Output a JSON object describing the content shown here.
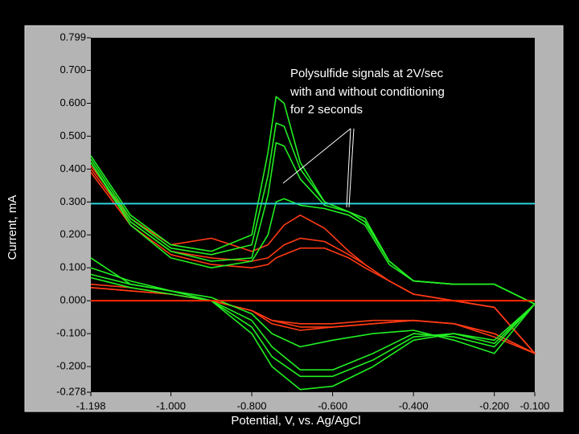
{
  "chart_data": {
    "type": "line",
    "xlabel": "Potential, V, vs. Ag/AgCl",
    "ylabel": "Current, mA",
    "annotation": [
      "Polysulfide signals at 2V/sec",
      "with and without conditioning",
      "for 2 seconds"
    ],
    "xlim": [
      -1.198,
      -0.1
    ],
    "ylim": [
      -0.278,
      0.799
    ],
    "xticks": [
      -1.198,
      {
        "value": -1,
        "label": "-1.000"
      },
      {
        "value": -0.8,
        "label": "-0.800"
      },
      {
        "value": -0.6,
        "label": "-0.600"
      },
      {
        "value": -0.4,
        "label": "-0.400"
      },
      {
        "value": -0.2,
        "label": "-0.200"
      },
      {
        "value": -0.1,
        "label": "-0.100"
      }
    ],
    "yticks": [
      0.799,
      {
        "value": 0.7,
        "label": "0.700"
      },
      {
        "value": 0.6,
        "label": "0.600"
      },
      {
        "value": 0.5,
        "label": "0.500"
      },
      {
        "value": 0.4,
        "label": "0.400"
      },
      {
        "value": 0.3,
        "label": "0.300"
      },
      {
        "value": 0.2,
        "label": "0.200"
      },
      {
        "value": 0.1,
        "label": "0.100"
      },
      {
        "value": 0,
        "label": "0.000"
      },
      {
        "value": -0.1,
        "label": "-0.100"
      },
      {
        "value": -0.2,
        "label": "-0.200"
      },
      -0.278
    ],
    "hlines": [
      {
        "value": 0.295,
        "color": "#2ad3dc"
      },
      {
        "value": 0,
        "color": "#ff2a00"
      }
    ],
    "x": [
      -1.198,
      -1.1,
      -1.0,
      -0.9,
      -0.8,
      -0.76,
      -0.74,
      -0.72,
      -0.68,
      -0.62,
      -0.56,
      -0.52,
      -0.46,
      -0.4,
      -0.3,
      -0.2,
      -0.1,
      -0.2,
      -0.3,
      -0.4,
      -0.5,
      -0.6,
      -0.68,
      -0.75,
      -0.8,
      -0.9,
      -1.0,
      -1.1,
      -1.198
    ],
    "series": [
      {
        "color": "#ff3a14",
        "values": [
          0.41,
          0.25,
          0.17,
          0.19,
          0.15,
          0.17,
          0.2,
          0.23,
          0.26,
          0.22,
          0.15,
          0.11,
          0.06,
          0.02,
          0.0,
          -0.02,
          -0.16,
          -0.1,
          -0.07,
          -0.06,
          -0.06,
          -0.07,
          -0.07,
          -0.06,
          -0.03,
          0.0,
          0.02,
          0.04,
          0.05
        ]
      },
      {
        "color": "#ff3a14",
        "values": [
          0.4,
          0.24,
          0.15,
          0.13,
          0.12,
          0.13,
          0.15,
          0.17,
          0.19,
          0.18,
          0.14,
          0.11,
          0.06,
          0.02,
          0.0,
          -0.02,
          -0.16,
          -0.1,
          -0.07,
          -0.06,
          -0.07,
          -0.08,
          -0.08,
          -0.06,
          -0.03,
          0.0,
          0.02,
          0.03,
          0.04
        ]
      },
      {
        "color": "#ff3a14",
        "values": [
          0.39,
          0.23,
          0.14,
          0.11,
          0.1,
          0.11,
          0.13,
          0.14,
          0.16,
          0.16,
          0.13,
          0.1,
          0.06,
          0.02,
          0.0,
          -0.02,
          -0.16,
          -0.11,
          -0.07,
          -0.06,
          -0.07,
          -0.08,
          -0.09,
          -0.07,
          -0.03,
          0.0,
          0.02,
          0.03,
          0.04
        ]
      },
      {
        "color": "#22ee22",
        "values": [
          0.44,
          0.26,
          0.17,
          0.15,
          0.2,
          0.45,
          0.62,
          0.6,
          0.42,
          0.3,
          0.27,
          0.25,
          0.12,
          0.06,
          0.05,
          0.05,
          -0.01,
          -0.12,
          -0.1,
          -0.12,
          -0.2,
          -0.26,
          -0.27,
          -0.2,
          -0.1,
          0.0,
          0.03,
          0.06,
          0.1
        ]
      },
      {
        "color": "#22ee22",
        "values": [
          0.43,
          0.25,
          0.16,
          0.14,
          0.17,
          0.38,
          0.54,
          0.53,
          0.4,
          0.3,
          0.27,
          0.24,
          0.12,
          0.06,
          0.05,
          0.05,
          -0.01,
          -0.13,
          -0.1,
          -0.11,
          -0.18,
          -0.23,
          -0.23,
          -0.17,
          -0.08,
          0.0,
          0.03,
          0.05,
          0.08
        ]
      },
      {
        "color": "#22ee22",
        "values": [
          0.42,
          0.24,
          0.15,
          0.12,
          0.13,
          0.32,
          0.48,
          0.47,
          0.37,
          0.29,
          0.27,
          0.24,
          0.12,
          0.06,
          0.05,
          0.05,
          -0.01,
          -0.14,
          -0.11,
          -0.1,
          -0.16,
          -0.21,
          -0.21,
          -0.14,
          -0.06,
          0.0,
          0.02,
          0.04,
          0.07
        ]
      },
      {
        "color": "#22ee22",
        "values": [
          0.42,
          0.23,
          0.13,
          0.1,
          0.12,
          0.2,
          0.3,
          0.31,
          0.29,
          0.28,
          0.26,
          0.23,
          0.11,
          0.06,
          0.05,
          0.05,
          -0.01,
          -0.16,
          -0.12,
          -0.09,
          -0.1,
          -0.12,
          -0.14,
          -0.1,
          -0.04,
          0.01,
          0.03,
          0.05,
          0.13
        ]
      }
    ]
  }
}
